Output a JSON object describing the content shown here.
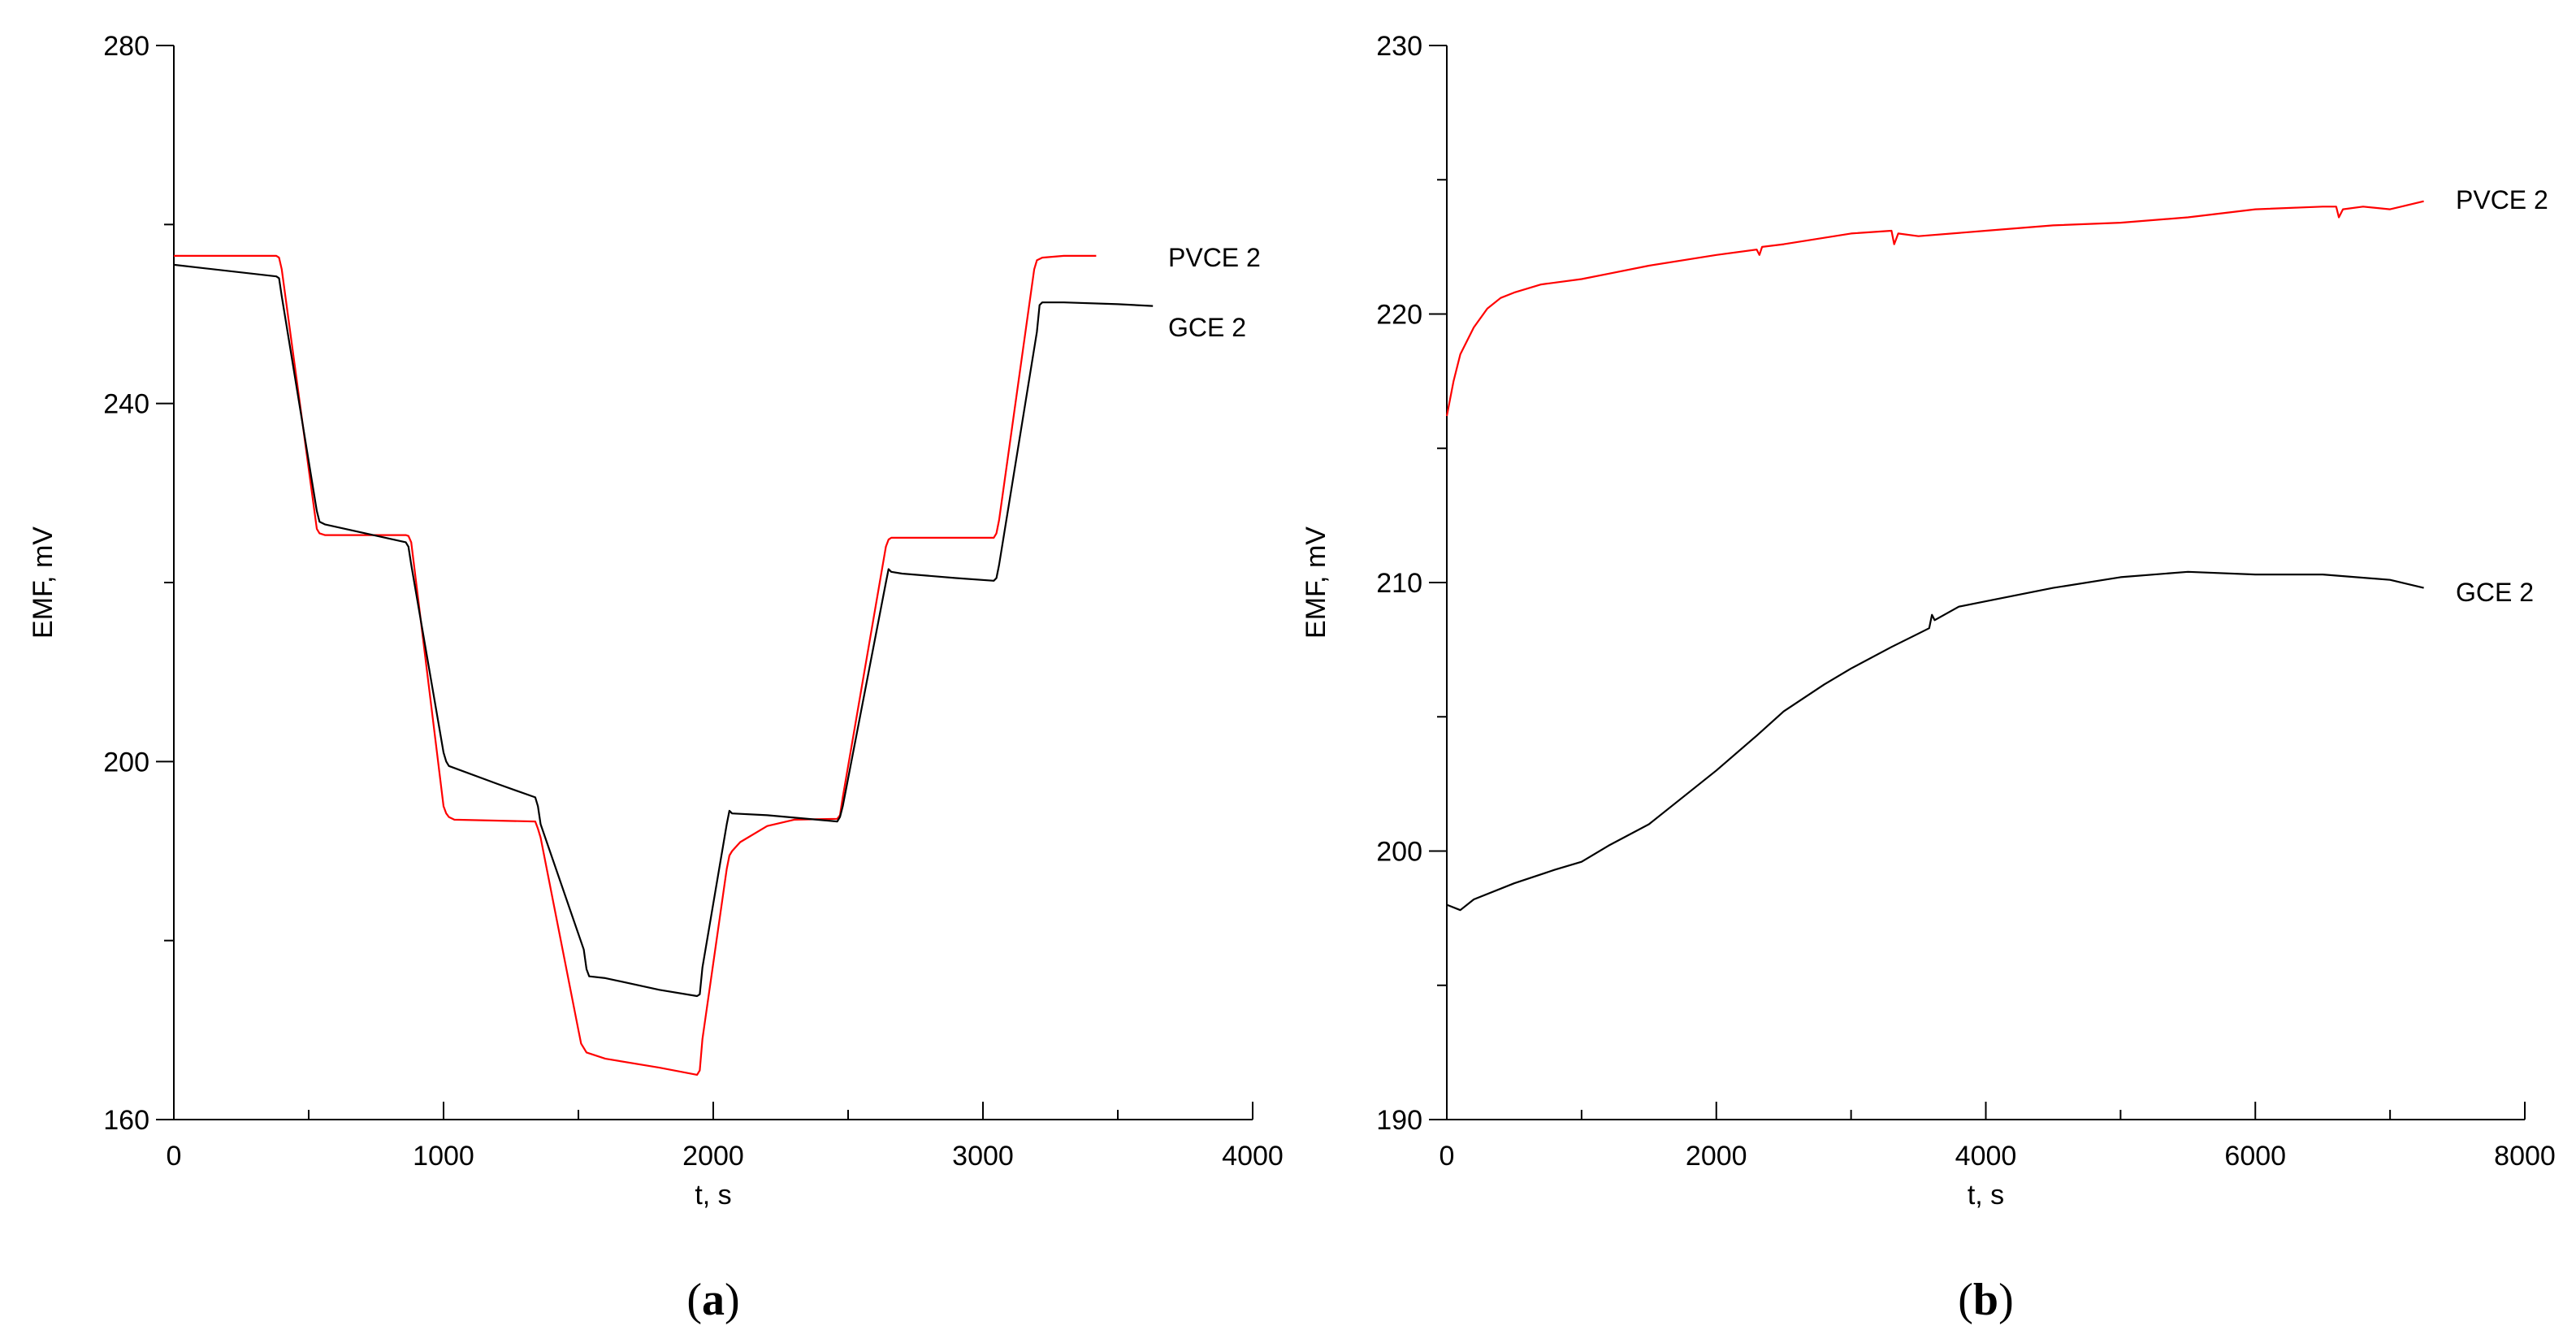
{
  "colors": {
    "PVCE": "#ff0000",
    "GCE": "#000000"
  },
  "chart_data": [
    {
      "panel": "(a)",
      "panel_letter": "a",
      "type": "line",
      "xlabel": "t, s",
      "ylabel": "EMF, mV",
      "xlim": [
        0,
        4000
      ],
      "ylim": [
        160,
        280
      ],
      "x_major_ticks": [
        0,
        1000,
        2000,
        3000,
        4000
      ],
      "x_minor_ticks": [
        500,
        1500,
        2500,
        3500
      ],
      "y_major_ticks": [
        160,
        200,
        240,
        280
      ],
      "y_minor_ticks": [
        180,
        220,
        260
      ],
      "series": [
        {
          "name": "PVCE 2",
          "color": "#ff0000",
          "x": [
            0,
            380,
            390,
            400,
            530,
            540,
            560,
            860,
            870,
            880,
            1000,
            1010,
            1020,
            1040,
            1340,
            1350,
            1360,
            1500,
            1510,
            1530,
            1600,
            1800,
            1940,
            1950,
            1960,
            2050,
            2060,
            2070,
            2100,
            2200,
            2300,
            2460,
            2470,
            2480,
            2640,
            2650,
            2660,
            3040,
            3050,
            3060,
            3190,
            3200,
            3220,
            3300,
            3420
          ],
          "y": [
            256.5,
            256.5,
            256.3,
            255,
            226,
            225.5,
            225.3,
            225.3,
            225.2,
            224.5,
            195,
            194.2,
            193.8,
            193.5,
            193.3,
            192.5,
            191.5,
            170,
            168.5,
            167.5,
            166.8,
            165.8,
            165,
            165.5,
            169,
            188,
            189.5,
            190,
            191,
            192.8,
            193.5,
            193.6,
            194,
            196,
            224,
            224.8,
            225,
            225,
            225.5,
            227,
            255,
            256,
            256.3,
            256.5,
            256.5
          ]
        },
        {
          "name": "GCE 2",
          "color": "#000000",
          "x": [
            0,
            380,
            390,
            400,
            530,
            540,
            560,
            860,
            870,
            880,
            1000,
            1010,
            1020,
            1200,
            1340,
            1350,
            1360,
            1520,
            1530,
            1540,
            1600,
            1800,
            1940,
            1950,
            1960,
            2050,
            2060,
            2070,
            2200,
            2460,
            2470,
            2480,
            2640,
            2650,
            2660,
            2700,
            2900,
            3040,
            3050,
            3060,
            3200,
            3210,
            3220,
            3300,
            3500,
            3630
          ],
          "y": [
            255.5,
            254.2,
            254,
            252,
            228,
            226.8,
            226.5,
            224.5,
            224,
            222,
            201,
            200,
            199.5,
            197.5,
            196,
            195,
            193,
            179,
            176.8,
            176,
            175.8,
            174.5,
            173.8,
            174,
            177,
            193,
            194.5,
            194.2,
            194,
            193.3,
            193.8,
            195,
            220,
            221.5,
            221.2,
            221,
            220.5,
            220.2,
            220.5,
            222,
            248,
            251,
            251.3,
            251.3,
            251.1,
            250.9
          ]
        }
      ]
    },
    {
      "panel": "(b)",
      "panel_letter": "b",
      "type": "line",
      "xlabel": "t, s",
      "ylabel": "EMF, mV",
      "xlim": [
        0,
        8000
      ],
      "ylim": [
        190,
        230
      ],
      "x_major_ticks": [
        0,
        2000,
        4000,
        6000,
        8000
      ],
      "x_minor_ticks": [
        1000,
        3000,
        5000,
        7000
      ],
      "y_major_ticks": [
        190,
        200,
        210,
        220,
        230
      ],
      "y_minor_ticks": [
        195,
        205,
        215,
        225
      ],
      "series": [
        {
          "name": "PVCE 2",
          "color": "#ff0000",
          "x": [
            0,
            50,
            100,
            200,
            300,
            400,
            500,
            700,
            1000,
            1200,
            1500,
            2000,
            2300,
            2320,
            2340,
            2500,
            3000,
            3300,
            3320,
            3350,
            3500,
            4000,
            4500,
            5000,
            5500,
            6000,
            6500,
            6600,
            6620,
            6650,
            6800,
            7000,
            7250
          ],
          "y": [
            216.2,
            217.5,
            218.5,
            219.5,
            220.2,
            220.6,
            220.8,
            221.1,
            221.3,
            221.5,
            221.8,
            222.2,
            222.4,
            222.2,
            222.5,
            222.6,
            223,
            223.1,
            222.6,
            223,
            222.9,
            223.1,
            223.3,
            223.4,
            223.6,
            223.9,
            224,
            224,
            223.6,
            223.9,
            224,
            223.9,
            224.2
          ]
        },
        {
          "name": "GCE 2",
          "color": "#000000",
          "x": [
            0,
            100,
            200,
            500,
            800,
            1000,
            1200,
            1500,
            1800,
            2000,
            2300,
            2500,
            2800,
            3000,
            3300,
            3500,
            3580,
            3600,
            3620,
            3800,
            4000,
            4500,
            5000,
            5500,
            6000,
            6500,
            7000,
            7250
          ],
          "y": [
            198,
            197.8,
            198.2,
            198.8,
            199.3,
            199.6,
            200.2,
            201,
            202.2,
            203,
            204.3,
            205.2,
            206.2,
            206.8,
            207.6,
            208.1,
            208.3,
            208.8,
            208.6,
            209.1,
            209.3,
            209.8,
            210.2,
            210.4,
            210.3,
            210.3,
            210.1,
            209.8
          ]
        }
      ]
    }
  ]
}
